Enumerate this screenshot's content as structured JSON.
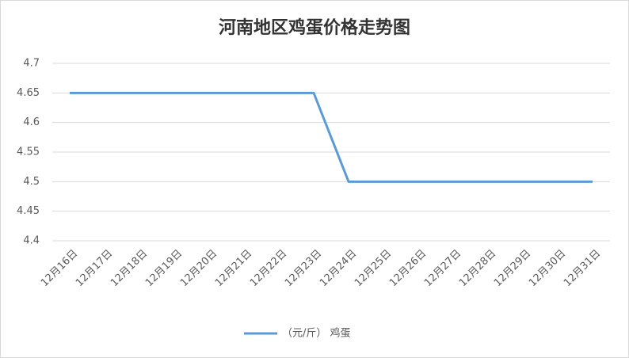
{
  "chart_data": {
    "type": "line",
    "title": "河南地区鸡蛋价格走势图",
    "categories": [
      "12月16日",
      "12月17日",
      "12月18日",
      "12月19日",
      "12月20日",
      "12月21日",
      "12月22日",
      "12月23日",
      "12月24日",
      "12月25日",
      "12月26日",
      "12月27日",
      "12月28日",
      "12月29日",
      "12月30日",
      "12月31日"
    ],
    "series": [
      {
        "name": "（元/斤） 鸡蛋",
        "color": "#5b9bd5",
        "values": [
          4.65,
          4.65,
          4.65,
          4.65,
          4.65,
          4.65,
          4.65,
          4.65,
          4.5,
          4.5,
          4.5,
          4.5,
          4.5,
          4.5,
          4.5,
          4.5
        ]
      }
    ],
    "ylim": [
      4.4,
      4.7
    ],
    "yticks": [
      4.4,
      4.45,
      4.5,
      4.55,
      4.6,
      4.65,
      4.7
    ],
    "grid": true,
    "legend": "bottom"
  }
}
